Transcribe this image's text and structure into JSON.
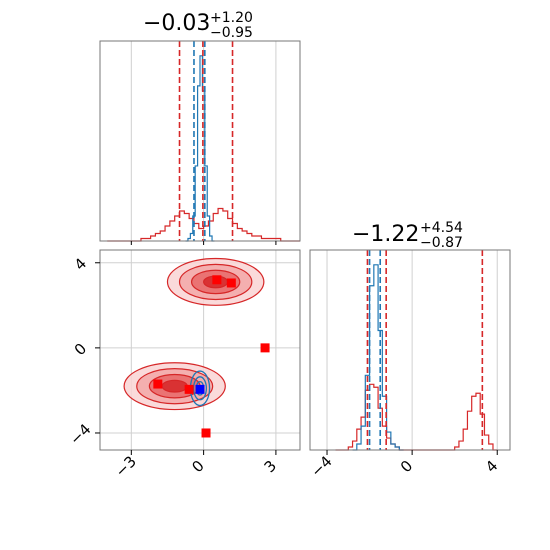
{
  "colors": {
    "red": "#d62728",
    "blue": "#1f77b4",
    "marker_red": "#ff0000",
    "marker_blue": "#0000ff",
    "grid": "#d0d0d0"
  },
  "chart_data": [
    {
      "type": "histogram",
      "panel": "param-1-marginal",
      "title": {
        "main": "−0.03",
        "sup": "+1.20",
        "sub": "−0.95"
      },
      "xlim": [
        -4.3,
        4.0
      ],
      "grid": true,
      "red_quantile_lines": [
        -1.0,
        -0.03,
        1.2
      ],
      "blue_quantile_lines": [
        -0.4,
        0.05
      ],
      "series": [
        {
          "color": "red",
          "bin_centers": [
            -3.9,
            -3.7,
            -3.5,
            -3.3,
            -3.1,
            -2.9,
            -2.7,
            -2.5,
            -2.3,
            -2.1,
            -1.9,
            -1.7,
            -1.5,
            -1.3,
            -1.1,
            -0.9,
            -0.7,
            -0.5,
            -0.3,
            -0.1,
            0.1,
            0.3,
            0.5,
            0.7,
            0.9,
            1.1,
            1.3,
            1.5,
            1.7,
            1.9,
            2.1,
            2.3,
            2.5,
            2.7,
            2.9,
            3.1,
            3.3,
            3.5,
            3.7,
            3.9
          ],
          "counts": [
            0,
            0,
            0,
            0,
            0,
            0,
            0,
            1,
            1,
            2,
            3,
            4,
            6,
            8,
            10,
            12,
            11,
            9,
            7,
            5,
            6,
            8,
            11,
            13,
            12,
            9,
            7,
            5,
            4,
            3,
            2,
            2,
            1,
            1,
            1,
            1,
            0,
            0,
            0,
            0
          ]
        },
        {
          "color": "blue",
          "bin_centers": [
            -0.7,
            -0.6,
            -0.5,
            -0.4,
            -0.3,
            -0.2,
            -0.1,
            0.0,
            0.1,
            0.2,
            0.3,
            0.4
          ],
          "counts": [
            0,
            1,
            3,
            10,
            30,
            62,
            74,
            60,
            30,
            10,
            2,
            0
          ]
        }
      ]
    },
    {
      "type": "contour",
      "panel": "joint",
      "xlim": [
        -4.3,
        4.0
      ],
      "ylim": [
        -4.8,
        4.6
      ],
      "xticks": [
        "−3",
        "0",
        "3"
      ],
      "yticks": [
        "4",
        "0",
        "−4"
      ],
      "grid": true,
      "red_modes": [
        {
          "x": 0.5,
          "y": 3.1,
          "sx": 1.0,
          "sy": 0.55
        },
        {
          "x": -1.2,
          "y": -1.8,
          "sx": 1.05,
          "sy": 0.55
        }
      ],
      "blue_mode": {
        "x": -0.15,
        "y": -1.9,
        "sx": 0.22,
        "sy": 0.45
      },
      "red_markers": [
        {
          "x": 0.55,
          "y": 3.2
        },
        {
          "x": 1.15,
          "y": 3.05
        },
        {
          "x": 2.55,
          "y": 0.0
        },
        {
          "x": -1.9,
          "y": -1.7
        },
        {
          "x": -0.6,
          "y": -1.95
        },
        {
          "x": 0.1,
          "y": -4.0
        }
      ],
      "blue_markers": [
        {
          "x": -0.15,
          "y": -1.95
        }
      ]
    },
    {
      "type": "histogram",
      "panel": "param-2-marginal",
      "title": {
        "main": "−1.22",
        "sup": "+4.54",
        "sub": "−0.87"
      },
      "xlim": [
        -4.8,
        4.6
      ],
      "xticks": [
        "−4",
        "0",
        "4"
      ],
      "grid": true,
      "red_quantile_lines": [
        -2.1,
        -1.22,
        3.3
      ],
      "blue_quantile_lines": [
        -2.0,
        -1.5
      ],
      "series": [
        {
          "color": "red",
          "bin_centers": [
            -3.5,
            -3.3,
            -3.1,
            -2.9,
            -2.7,
            -2.5,
            -2.3,
            -2.1,
            -1.9,
            -1.7,
            -1.5,
            -1.3,
            -1.1,
            -0.9,
            -0.7,
            -0.5,
            -0.3,
            -0.1,
            0.1,
            0.3,
            0.5,
            0.7,
            0.9,
            1.1,
            1.3,
            1.5,
            1.7,
            1.9,
            2.1,
            2.3,
            2.5,
            2.7,
            2.9,
            3.1,
            3.3,
            3.5,
            3.7,
            3.9
          ],
          "counts": [
            0,
            0,
            0,
            1,
            3,
            7,
            11,
            20,
            22,
            21,
            14,
            8,
            4,
            2,
            1,
            0,
            0,
            0,
            0,
            0,
            0,
            0,
            0,
            0,
            0,
            0,
            0,
            0,
            1,
            3,
            7,
            13,
            18,
            19,
            12,
            5,
            2,
            0
          ]
        },
        {
          "color": "blue",
          "bin_centers": [
            -2.7,
            -2.5,
            -2.3,
            -2.1,
            -1.9,
            -1.7,
            -1.5,
            -1.3,
            -1.1,
            -0.9,
            -0.7,
            -0.5
          ],
          "counts": [
            0,
            2,
            8,
            25,
            55,
            62,
            40,
            18,
            6,
            2,
            1,
            0
          ]
        }
      ]
    }
  ]
}
